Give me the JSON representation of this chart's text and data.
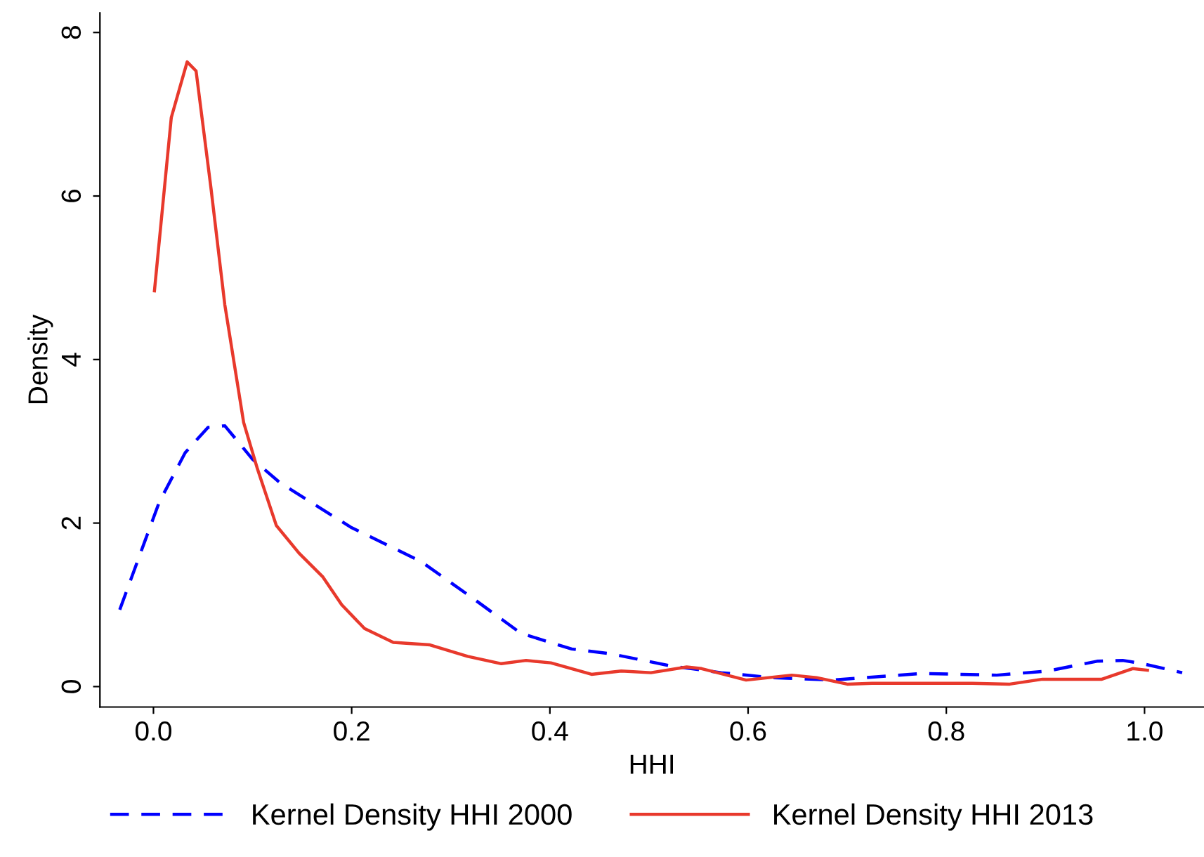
{
  "chart_data": {
    "type": "line",
    "xlabel": "HHI",
    "ylabel": "Density",
    "xlim": [
      -0.054,
      1.06
    ],
    "ylim": [
      -0.25,
      8.24
    ],
    "xticks": [
      {
        "value": 0,
        "label": "0.0"
      },
      0.2,
      0.4,
      0.6,
      0.8,
      {
        "value": 1,
        "label": "1.0"
      }
    ],
    "yticks": [
      0,
      2,
      4,
      6,
      8
    ],
    "grid": false,
    "legend": "bottom",
    "series": [
      {
        "name": "Kernel Density HHI 2000",
        "color": "#0000ff",
        "line_style": "dashed",
        "x": [
          -0.034,
          -0.008,
          0.006,
          0.032,
          0.055,
          0.072,
          0.1,
          0.128,
          0.199,
          0.27,
          0.32,
          0.371,
          0.422,
          0.462,
          0.523,
          0.573,
          0.624,
          0.685,
          0.775,
          0.851,
          0.902,
          0.952,
          0.978,
          0.998,
          1.038
        ],
        "values": [
          0.94,
          1.8,
          2.26,
          2.86,
          3.17,
          3.19,
          2.78,
          2.49,
          1.95,
          1.53,
          1.1,
          0.65,
          0.46,
          0.4,
          0.25,
          0.17,
          0.11,
          0.08,
          0.16,
          0.14,
          0.19,
          0.31,
          0.32,
          0.28,
          0.17
        ]
      },
      {
        "name": "Kernel Density HHI 2013",
        "color": "#e8392c",
        "line_style": "solid",
        "x": [
          0.001,
          0.018,
          0.034,
          0.043,
          0.058,
          0.072,
          0.091,
          0.105,
          0.124,
          0.147,
          0.171,
          0.19,
          0.213,
          0.242,
          0.279,
          0.317,
          0.351,
          0.376,
          0.401,
          0.442,
          0.472,
          0.502,
          0.538,
          0.553,
          0.598,
          0.644,
          0.669,
          0.7,
          0.725,
          0.775,
          0.826,
          0.864,
          0.897,
          0.927,
          0.957,
          0.988,
          1.003
        ],
        "values": [
          4.84,
          6.96,
          7.64,
          7.53,
          6.1,
          4.67,
          3.23,
          2.66,
          1.97,
          1.63,
          1.34,
          1.0,
          0.71,
          0.54,
          0.51,
          0.37,
          0.28,
          0.32,
          0.29,
          0.15,
          0.19,
          0.17,
          0.24,
          0.22,
          0.08,
          0.14,
          0.11,
          0.03,
          0.04,
          0.04,
          0.04,
          0.03,
          0.09,
          0.09,
          0.09,
          0.22,
          0.2
        ]
      }
    ]
  }
}
